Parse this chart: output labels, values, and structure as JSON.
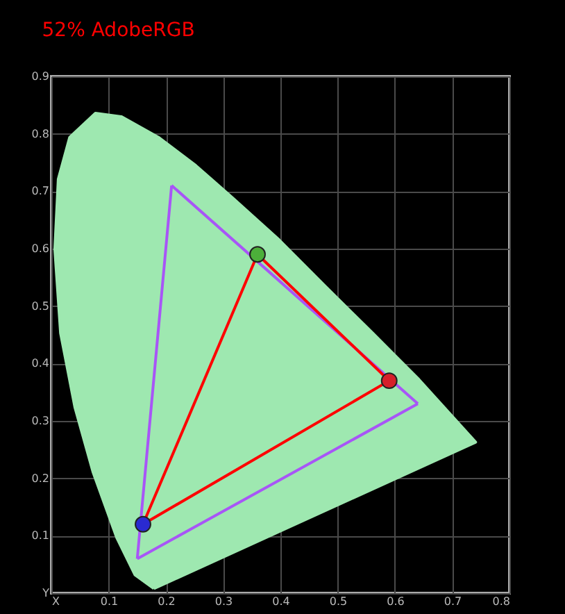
{
  "chart_data": {
    "type": "line",
    "title": "52% AdobeRGB",
    "xlim": [
      0,
      0.8
    ],
    "ylim": [
      0,
      0.9
    ],
    "xticks": [
      {
        "value": 0,
        "label": "X"
      },
      0.1,
      0.2,
      0.3,
      0.4,
      0.5,
      0.6,
      0.7,
      0.8
    ],
    "yticks": [
      {
        "value": 0,
        "label": "Y"
      },
      0.1,
      0.2,
      0.3,
      0.4,
      0.5,
      0.6,
      0.7,
      0.8,
      0.9
    ],
    "grid": true,
    "legend": false,
    "series": [
      {
        "type": "area",
        "color": "#9ee8b0",
        "x": [
          0.179,
          0.146,
          0.114,
          0.073,
          0.041,
          0.016,
          0.006,
          0.012,
          0.032,
          0.077,
          0.122,
          0.187,
          0.252,
          0.317,
          0.398,
          0.479,
          0.561,
          0.642,
          0.741,
          0.179
        ],
        "values": [
          0.008,
          0.032,
          0.097,
          0.21,
          0.324,
          0.453,
          0.599,
          0.721,
          0.794,
          0.836,
          0.83,
          0.794,
          0.745,
          0.688,
          0.615,
          0.534,
          0.453,
          0.372,
          0.263,
          0.008
        ]
      },
      {
        "type": "line",
        "color": "#a855f7",
        "x": [
          0.21,
          0.64
        ],
        "values": [
          0.71,
          0.33
        ]
      },
      {
        "type": "line",
        "color": "#a855f7",
        "x": [
          0.15,
          0.64
        ],
        "values": [
          0.06,
          0.33
        ]
      },
      {
        "type": "line",
        "color": "#a855f7",
        "x": [
          0.15,
          0.21
        ],
        "values": [
          0.06,
          0.71
        ]
      },
      {
        "type": "line",
        "color": "#ff0000",
        "x": [
          0.36,
          0.59
        ],
        "values": [
          0.59,
          0.37
        ]
      },
      {
        "type": "line",
        "color": "#ff0000",
        "x": [
          0.16,
          0.59
        ],
        "values": [
          0.12,
          0.37
        ]
      },
      {
        "type": "line",
        "color": "#ff0000",
        "x": [
          0.16,
          0.36
        ],
        "values": [
          0.12,
          0.59
        ]
      },
      {
        "type": "scatter",
        "x": [
          0.36,
          0.59,
          0.16
        ],
        "values": [
          0.59,
          0.37,
          0.12
        ],
        "colors": [
          "#4caf3a",
          "#d61f2a",
          "#2a2ad0"
        ]
      }
    ]
  }
}
